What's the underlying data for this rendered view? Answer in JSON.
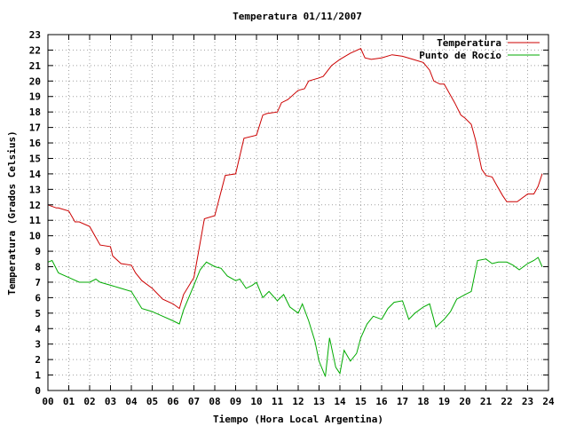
{
  "chart_data": {
    "type": "line",
    "title": "Temperatura 01/11/2007",
    "xlabel": "Tiempo (Hora Local Argentina)",
    "ylabel": "Temperatura (Grados Celsius)",
    "xlim": [
      0,
      24
    ],
    "ylim": [
      0,
      23
    ],
    "x_ticks": [
      "00",
      "01",
      "02",
      "03",
      "04",
      "05",
      "06",
      "07",
      "08",
      "09",
      "10",
      "11",
      "12",
      "13",
      "14",
      "15",
      "16",
      "17",
      "18",
      "19",
      "20",
      "21",
      "22",
      "23",
      "24"
    ],
    "y_ticks": [
      "0",
      "1",
      "2",
      "3",
      "4",
      "5",
      "6",
      "7",
      "8",
      "9",
      "10",
      "11",
      "12",
      "13",
      "14",
      "15",
      "16",
      "17",
      "18",
      "19",
      "20",
      "21",
      "22",
      "23"
    ],
    "grid": true,
    "legend_position": "top-right",
    "series": [
      {
        "name": "Temperatura",
        "color": "#cc0000",
        "x": [
          0,
          0.4,
          0.5,
          1.0,
          1.3,
          1.5,
          2.0,
          2.5,
          3.0,
          3.1,
          3.5,
          4.0,
          4.2,
          4.5,
          5.0,
          5.5,
          6.0,
          6.3,
          6.5,
          7.0,
          7.2,
          7.5,
          8.0,
          8.5,
          9.0,
          9.4,
          10.0,
          10.3,
          10.5,
          11.0,
          11.2,
          11.5,
          12.0,
          12.3,
          12.5,
          13.0,
          13.2,
          13.6,
          14.0,
          14.5,
          15.0,
          15.2,
          15.5,
          16.0,
          16.5,
          17.0,
          17.5,
          18.0,
          18.3,
          18.5,
          18.8,
          19.0,
          19.5,
          19.8,
          20.0,
          20.3,
          20.5,
          20.8,
          21.0,
          21.3,
          21.5,
          21.8,
          22.0,
          22.5,
          23.0,
          23.3,
          23.5,
          23.7
        ],
        "y": [
          12.0,
          11.8,
          11.8,
          11.6,
          10.9,
          10.9,
          10.6,
          9.4,
          9.3,
          8.7,
          8.2,
          8.1,
          7.6,
          7.1,
          6.6,
          5.9,
          5.6,
          5.3,
          6.2,
          7.3,
          8.8,
          11.1,
          11.3,
          13.9,
          14.0,
          16.3,
          16.5,
          17.8,
          17.9,
          18.0,
          18.6,
          18.8,
          19.4,
          19.5,
          20.0,
          20.2,
          20.3,
          21.0,
          21.4,
          21.8,
          22.1,
          21.5,
          21.4,
          21.5,
          21.7,
          21.6,
          21.4,
          21.2,
          20.7,
          20.0,
          19.8,
          19.8,
          18.6,
          17.8,
          17.6,
          17.2,
          16.2,
          14.3,
          13.9,
          13.8,
          13.3,
          12.6,
          12.2,
          12.2,
          12.7,
          12.7,
          13.2,
          14.0
        ]
      },
      {
        "name": "Punto de Rocío",
        "color": "#00aa00",
        "x": [
          0,
          0.2,
          0.5,
          1.0,
          1.5,
          2.0,
          2.3,
          2.5,
          3.0,
          3.5,
          4.0,
          4.5,
          5.0,
          5.5,
          6.0,
          6.3,
          6.5,
          7.0,
          7.3,
          7.6,
          8.0,
          8.3,
          8.6,
          9.0,
          9.2,
          9.5,
          9.8,
          10.0,
          10.3,
          10.6,
          11.0,
          11.3,
          11.6,
          12.0,
          12.2,
          12.5,
          12.8,
          13.0,
          13.3,
          13.5,
          13.8,
          14.0,
          14.2,
          14.5,
          14.8,
          15.0,
          15.3,
          15.6,
          16.0,
          16.3,
          16.6,
          17.0,
          17.3,
          17.6,
          18.0,
          18.3,
          18.6,
          19.0,
          19.3,
          19.6,
          20.0,
          20.3,
          20.6,
          21.0,
          21.3,
          21.6,
          22.0,
          22.3,
          22.6,
          23.0,
          23.3,
          23.5,
          23.7
        ],
        "y": [
          8.3,
          8.4,
          7.6,
          7.3,
          7.0,
          7.0,
          7.2,
          7.0,
          6.8,
          6.6,
          6.4,
          5.3,
          5.1,
          4.8,
          4.5,
          4.3,
          5.2,
          6.8,
          7.8,
          8.3,
          8.0,
          7.9,
          7.4,
          7.1,
          7.2,
          6.6,
          6.8,
          7.0,
          6.0,
          6.4,
          5.8,
          6.2,
          5.4,
          5.0,
          5.6,
          4.5,
          3.2,
          1.9,
          0.9,
          3.4,
          1.5,
          1.1,
          2.6,
          1.9,
          2.4,
          3.4,
          4.3,
          4.8,
          4.6,
          5.3,
          5.7,
          5.8,
          4.6,
          5.0,
          5.4,
          5.6,
          4.1,
          4.6,
          5.1,
          5.9,
          6.2,
          6.4,
          8.4,
          8.5,
          8.2,
          8.3,
          8.3,
          8.1,
          7.8,
          8.2,
          8.4,
          8.6,
          8.0
        ]
      }
    ]
  }
}
